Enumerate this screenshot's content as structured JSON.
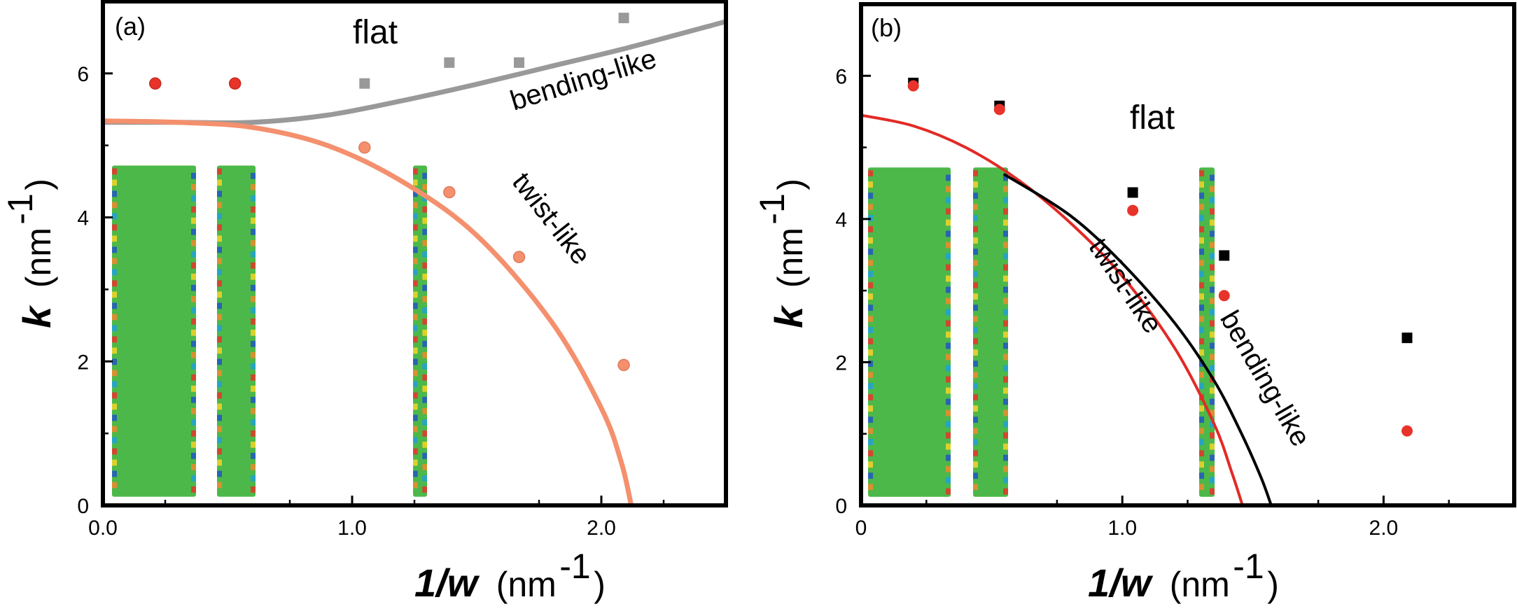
{
  "colors": {
    "panel_a_bending": "#999999",
    "panel_a_twist": "#f4906e",
    "panel_a_twist_point": "#f4906e",
    "panel_a_red_point": "#e8332a",
    "panel_b_bending": "#000000",
    "panel_b_twist": "#e22a26",
    "panel_b_red_point": "#e8332a",
    "panel_b_black_point": "#000000",
    "ribbon_base": "#4cb849"
  },
  "chart_data": [
    {
      "type": "scatter",
      "panel": "(a)",
      "xlabel_main": "1/w",
      "xlabel_unit": "(nm",
      "xlabel_sup": "-1",
      "xlabel_close": ")",
      "ylabel_main": "k",
      "ylabel_unit": "(nm",
      "ylabel_sup": "-1",
      "ylabel_close": ")",
      "xlim": [
        0.0,
        2.5
      ],
      "ylim": [
        0,
        7
      ],
      "xticks": [
        0.0,
        1.0,
        2.0
      ],
      "xtick_labels": [
        "0.0",
        "1.0",
        "2.0"
      ],
      "yticks": [
        0,
        2,
        4,
        6
      ],
      "ytick_labels": [
        "0",
        "2",
        "4",
        "6"
      ],
      "region_label": "flat",
      "curves": [
        {
          "name": "bending-like",
          "label": "bending-like",
          "x": [
            0.0,
            0.3,
            0.6,
            0.9,
            1.2,
            1.5,
            1.8,
            2.1,
            2.5
          ],
          "y": [
            5.32,
            5.32,
            5.32,
            5.42,
            5.62,
            5.85,
            6.1,
            6.35,
            6.72
          ]
        },
        {
          "name": "twist-like",
          "label": "twist-like",
          "x": [
            0.0,
            0.3,
            0.6,
            0.9,
            1.2,
            1.5,
            1.8,
            2.0,
            2.08,
            2.12
          ],
          "y": [
            5.34,
            5.32,
            5.25,
            5.0,
            4.5,
            3.75,
            2.55,
            1.35,
            0.6,
            0.0
          ]
        }
      ],
      "series": [
        {
          "name": "bending points",
          "marker": "square",
          "x": [
            1.05,
            1.39,
            1.67,
            2.09
          ],
          "y": [
            5.86,
            6.15,
            6.15,
            6.77
          ]
        },
        {
          "name": "twist points",
          "marker": "circle",
          "x": [
            1.05,
            1.39,
            1.67,
            2.09
          ],
          "y": [
            4.97,
            4.35,
            3.45,
            1.95
          ]
        },
        {
          "name": "both points",
          "marker": "circle",
          "x": [
            0.21,
            0.53
          ],
          "y": [
            5.86,
            5.86
          ]
        }
      ]
    },
    {
      "type": "scatter",
      "panel": "(b)",
      "xlabel_main": "1/w",
      "xlabel_unit": "(nm",
      "xlabel_sup": "-1",
      "xlabel_close": ")",
      "ylabel_main": "k",
      "ylabel_unit": "(nm",
      "ylabel_sup": "-1",
      "ylabel_close": ")",
      "xlim": [
        0.0,
        2.5
      ],
      "ylim": [
        0,
        7
      ],
      "xticks": [
        0.0,
        1.0,
        2.0
      ],
      "xtick_labels": [
        "0",
        "1.0",
        "2.0"
      ],
      "yticks": [
        0,
        2,
        4,
        6
      ],
      "ytick_labels": [
        "0",
        "2",
        "4",
        "6"
      ],
      "region_label": "flat",
      "curves": [
        {
          "name": "twist-like",
          "label": "twist-like",
          "x": [
            0.0,
            0.2,
            0.4,
            0.6,
            0.8,
            1.0,
            1.2,
            1.35,
            1.42,
            1.46
          ],
          "y": [
            5.45,
            5.3,
            5.0,
            4.55,
            3.95,
            3.2,
            2.2,
            1.15,
            0.45,
            0.0
          ]
        },
        {
          "name": "bending-like",
          "label": "bending-like",
          "x": [
            0.55,
            0.8,
            1.0,
            1.2,
            1.35,
            1.45,
            1.53,
            1.57
          ],
          "y": [
            4.62,
            4.05,
            3.38,
            2.55,
            1.75,
            1.05,
            0.4,
            0.0
          ]
        }
      ],
      "series": [
        {
          "name": "black squares",
          "marker": "square",
          "x": [
            0.2,
            0.53,
            1.04,
            1.39,
            2.09
          ],
          "y": [
            5.9,
            5.58,
            4.37,
            3.49,
            2.34
          ]
        },
        {
          "name": "red circles",
          "marker": "circle",
          "x": [
            0.2,
            0.53,
            1.04,
            1.39,
            2.09
          ],
          "y": [
            5.86,
            5.53,
            4.12,
            2.93,
            1.04
          ]
        }
      ]
    }
  ]
}
